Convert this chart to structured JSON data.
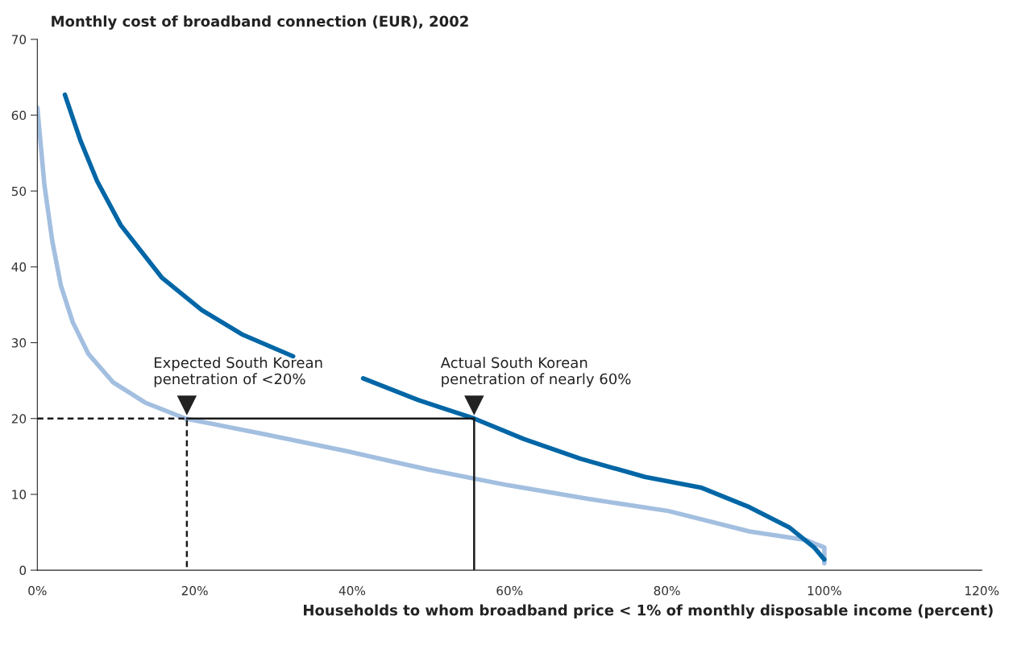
{
  "chart_data": {
    "type": "line",
    "title": "Monthly cost of broadband connection (EUR), 2002",
    "xlabel": "Households to whom broadband price < 1% of monthly disposable income (percent)",
    "xlim": [
      0,
      120
    ],
    "xticks": [
      {
        "value": 0,
        "label": "0%"
      },
      {
        "value": 20,
        "label": "20%"
      },
      {
        "value": 40,
        "label": "40%"
      },
      {
        "value": 60,
        "label": "60%"
      },
      {
        "value": 80,
        "label": "80%"
      },
      {
        "value": 100,
        "label": "100%"
      },
      {
        "value": 120,
        "label": "120%"
      }
    ],
    "ylim": [
      0,
      70
    ],
    "yticks": [
      0,
      10,
      20,
      30,
      40,
      50,
      60,
      70
    ],
    "grid": false,
    "marker": "none",
    "series": [
      {
        "color": "#a3bfe0",
        "x": [
          0,
          0.9,
          1.9,
          3,
          4.5,
          6.5,
          9.6,
          13.7,
          18.8,
          29,
          39.3,
          49.5,
          59.8,
          70,
          80.2,
          90.5,
          97.6,
          100,
          100
        ],
        "values": [
          61,
          50.8,
          43.4,
          37.5,
          32.7,
          28.5,
          24.8,
          22.1,
          20,
          17.9,
          15.7,
          13.3,
          11.2,
          9.4,
          7.8,
          5.1,
          4,
          3,
          0.9
        ]
      },
      {
        "color": "#0066a6",
        "x": [
          3.5,
          5.5,
          7.6,
          10.6,
          15.8,
          20.9,
          26,
          32.5,
          33.5,
          41.4,
          48.5,
          55.5,
          61.8,
          69,
          77.2,
          84.3,
          90.5,
          95.6,
          98.7,
          100
        ],
        "values": [
          62.7,
          56.6,
          51.3,
          45.5,
          38.6,
          34.3,
          31.1,
          28.2,
          null,
          25.3,
          22.4,
          20,
          17.3,
          14.7,
          12.3,
          10.9,
          8.3,
          5.6,
          3,
          1.4
        ]
      },
      {
        "color": "#1a1a1a",
        "line_style": "dashed",
        "x": [
          0,
          19,
          19
        ],
        "values": [
          20,
          20,
          0
        ]
      },
      {
        "color": "#1a1a1a",
        "line_style": "solid",
        "x": [
          19,
          55.5,
          55.5
        ],
        "values": [
          20,
          20,
          0
        ]
      }
    ],
    "annotations": [
      {
        "text": "Expected South Korean\npenetration of <20%",
        "x": 19,
        "y": 20
      },
      {
        "text": "Actual South Korean\npenetration of nearly 60%",
        "x": 55.5,
        "y": 20
      }
    ]
  }
}
